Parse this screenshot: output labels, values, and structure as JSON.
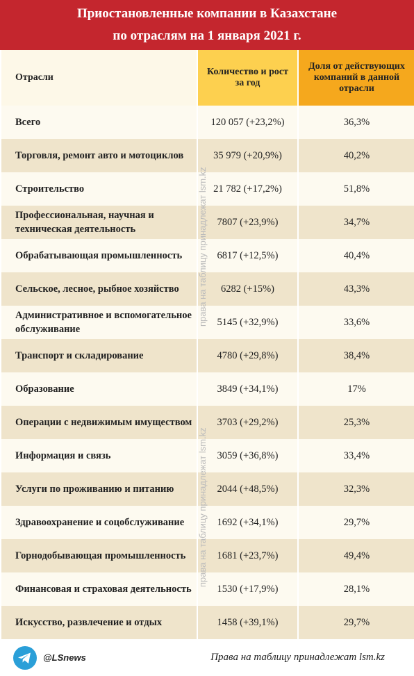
{
  "header": {
    "title": [
      "Приостановленные компании в Казахстане",
      "по отраслям на 1 января 2021 г."
    ]
  },
  "table": {
    "columns": [
      "Отрасли",
      "Количество и рост за год",
      "Доля от действующих компаний в данной отрасли"
    ],
    "rows": [
      [
        "Всего",
        "120 057 (+23,2%)",
        "36,3%"
      ],
      [
        "Торговля, ремонт авто и мотоциклов",
        "35 979 (+20,9%)",
        "40,2%"
      ],
      [
        "Строительство",
        "21 782 (+17,2%)",
        "51,8%"
      ],
      [
        "Профессиональная, научная и техническая деятельность",
        "7807 (+23,9%)",
        "34,7%"
      ],
      [
        "Обрабатывающая промышленность",
        "6817 (+12,5%)",
        "40,4%"
      ],
      [
        "Сельское, лесное, рыбное хозяйство",
        "6282 (+15%)",
        "43,3%"
      ],
      [
        "Административное и вспомогательное обслуживание",
        "5145 (+32,9%)",
        "33,6%"
      ],
      [
        "Транспорт и складирование",
        "4780 (+29,8%)",
        "38,4%"
      ],
      [
        "Образование",
        "3849 (+34,1%)",
        "17%"
      ],
      [
        "Операции с недвижимым имуществом",
        "3703 (+29,2%)",
        "25,3%"
      ],
      [
        "Информация и связь",
        "3059 (+36,8%)",
        "33,4%"
      ],
      [
        "Услуги по проживанию и питанию",
        "2044 (+48,5%)",
        "32,3%"
      ],
      [
        "Здравоохранение и соцобслуживание",
        "1692 (+34,1%)",
        "29,7%"
      ],
      [
        "Горнодобывающая промышленность",
        "1681 (+23,7%)",
        "49,4%"
      ],
      [
        "Финансовая и страховая деятельность",
        "1530 (+17,9%)",
        "28,1%"
      ],
      [
        "Искусство, развлечение и отдых",
        "1458 (+39,1%)",
        "29,7%"
      ]
    ]
  },
  "watermark": "права на таблицу принадлежат lsm.kz",
  "footer": {
    "handle": "@LSnews",
    "credit": "Права на таблицу принадлежат lsm.kz"
  }
}
